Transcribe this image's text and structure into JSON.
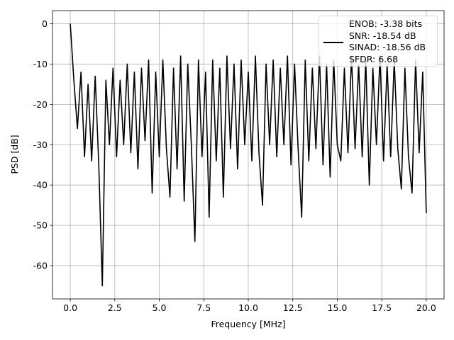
{
  "chart_data": {
    "type": "line",
    "xlabel": "Frequency [MHz]",
    "ylabel": "PSD [dB]",
    "x": [
      0,
      0.2,
      0.4,
      0.6,
      0.8,
      1.0,
      1.2,
      1.4,
      1.6,
      1.8,
      2.0,
      2.2,
      2.4,
      2.6,
      2.8,
      3.0,
      3.2,
      3.4,
      3.6,
      3.8,
      4.0,
      4.2,
      4.4,
      4.6,
      4.8,
      5.0,
      5.2,
      5.4,
      5.6,
      5.8,
      6.0,
      6.2,
      6.4,
      6.6,
      6.8,
      7.0,
      7.2,
      7.4,
      7.6,
      7.8,
      8.0,
      8.2,
      8.4,
      8.6,
      8.8,
      9.0,
      9.2,
      9.4,
      9.6,
      9.8,
      10.0,
      10.2,
      10.4,
      10.6,
      10.8,
      11.0,
      11.2,
      11.4,
      11.6,
      11.8,
      12.0,
      12.2,
      12.4,
      12.6,
      12.8,
      13.0,
      13.2,
      13.4,
      13.6,
      13.8,
      14.0,
      14.2,
      14.4,
      14.6,
      14.8,
      15.0,
      15.2,
      15.4,
      15.6,
      15.8,
      16.0,
      16.2,
      16.4,
      16.6,
      16.8,
      17.0,
      17.2,
      17.4,
      17.6,
      17.8,
      18.0,
      18.2,
      18.4,
      18.6,
      18.8,
      19.0,
      19.2,
      19.4,
      19.6,
      19.8,
      20.0
    ],
    "series": [
      {
        "name": "ENOB: -3.38 bits\nSNR: -18.54 dB\nSINAD: -18.56 dB\nSFDR: 6.68",
        "color": "#000000",
        "values": [
          0,
          -14,
          -26,
          -12,
          -33,
          -15,
          -34,
          -13,
          -35,
          -65,
          -14,
          -30,
          -11,
          -33,
          -14,
          -30,
          -10,
          -32,
          -12,
          -36,
          -11,
          -29,
          -9,
          -42,
          -12,
          -33,
          -9,
          -31,
          -43,
          -11,
          -36,
          -8,
          -44,
          -10,
          -30,
          -54,
          -9,
          -33,
          -12,
          -48,
          -9,
          -34,
          -11,
          -43,
          -8,
          -31,
          -10,
          -36,
          -9,
          -30,
          -12,
          -34,
          -8,
          -32,
          -45,
          -10,
          -30,
          -9,
          -33,
          -11,
          -30,
          -8,
          -35,
          -10,
          -31,
          -48,
          -9,
          -34,
          -11,
          -31,
          -8,
          -35,
          -10,
          -38,
          -9,
          -30,
          -34,
          -11,
          -32,
          -8,
          -31,
          -10,
          -33,
          -9,
          -40,
          -11,
          -30,
          -8,
          -34,
          -10,
          -33,
          -9,
          -31,
          -41,
          -11,
          -33,
          -42,
          -9,
          -32,
          -12,
          -47
        ]
      }
    ],
    "xlim": [
      -1,
      21
    ],
    "ylim": [
      -68.25,
      3.25
    ],
    "xticks": [
      {
        "value": 0,
        "label": "0.0"
      },
      {
        "value": 2.5,
        "label": "2.5"
      },
      {
        "value": 5,
        "label": "5.0"
      },
      {
        "value": 7.5,
        "label": "7.5"
      },
      {
        "value": 10,
        "label": "10.0"
      },
      {
        "value": 12.5,
        "label": "12.5"
      },
      {
        "value": 15,
        "label": "15.0"
      },
      {
        "value": 17.5,
        "label": "17.5"
      },
      {
        "value": 20,
        "label": "20.0"
      }
    ],
    "yticks": [
      -60,
      -50,
      -40,
      -30,
      -20,
      -10,
      0
    ],
    "grid": true,
    "legend": "upper right"
  }
}
